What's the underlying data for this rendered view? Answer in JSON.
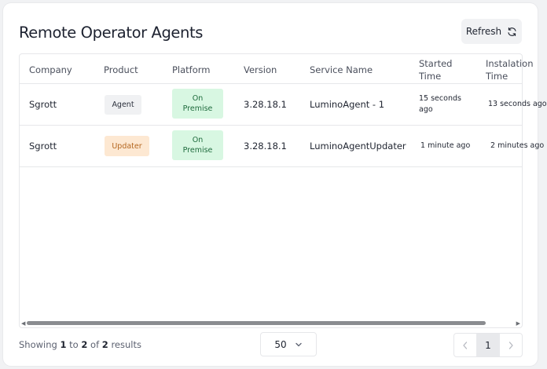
{
  "header": {
    "title": "Remote Operator Agents",
    "refresh_label": "Refresh"
  },
  "table": {
    "columns": [
      "Company",
      "Product",
      "Platform",
      "Version",
      "Service Name",
      "Started Time",
      "Instalation Time"
    ],
    "rows": [
      {
        "company": "Sgrott",
        "product": "Agent",
        "platform": "On Premise",
        "version": "3.28.18.1",
        "service_name": "LuminoAgent - 1",
        "started_time": "15 seconds ago",
        "installation_time": "13 seconds ago"
      },
      {
        "company": "Sgrott",
        "product": "Updater",
        "platform": "On Premise",
        "version": "3.28.18.1",
        "service_name": "LuminoAgentUpdater",
        "started_time": "1 minute ago",
        "installation_time": "2 minutes ago"
      }
    ]
  },
  "footer": {
    "showing_prefix": "Showing",
    "from": "1",
    "to_word": "to",
    "to": "2",
    "of_word": "of",
    "total": "2",
    "results_word": "results",
    "page_size": "50",
    "current_page": "1"
  },
  "colors": {
    "agent_badge_bg": "#f0f1f3",
    "updater_badge_bg": "#fde8d2",
    "platform_badge_bg": "#d8f7e2"
  },
  "icons": {
    "refresh": "refresh-icon",
    "page_size_dropdown": "chevron-down-icon",
    "prev": "chevron-left-icon",
    "next": "chevron-right-icon"
  }
}
